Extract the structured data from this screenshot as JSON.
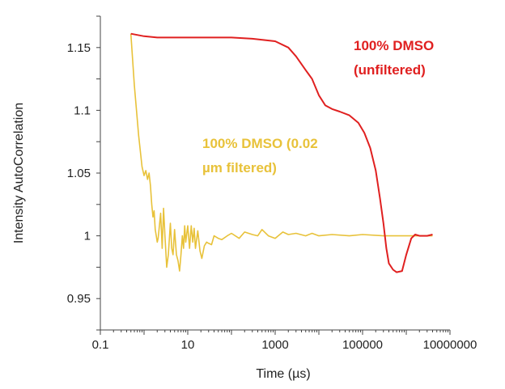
{
  "chart_data": {
    "type": "line",
    "title": "",
    "xlabel": "Time (µs)",
    "ylabel": "Intensity AutoCorrelation",
    "xscale": "log",
    "xlim": [
      0.1,
      10000000
    ],
    "ylim": [
      0.925,
      1.175
    ],
    "x_ticks": [
      0.1,
      10,
      1000,
      100000,
      10000000
    ],
    "x_tick_labels": [
      "0.1",
      "10",
      "1000",
      "100000",
      "10000000"
    ],
    "y_ticks": [
      0.95,
      1,
      1.05,
      1.1,
      1.15
    ],
    "y_tick_labels": [
      "0.95",
      "1",
      "1.05",
      "1.1",
      "1.15"
    ],
    "grid": false,
    "series": [
      {
        "name": "",
        "color": "#e8c23a",
        "points": [
          [
            0.5,
            1.161
          ],
          [
            0.6,
            1.12
          ],
          [
            0.75,
            1.08
          ],
          [
            0.9,
            1.055
          ],
          [
            1.0,
            1.048
          ],
          [
            1.1,
            1.052
          ],
          [
            1.2,
            1.045
          ],
          [
            1.3,
            1.05
          ],
          [
            1.4,
            1.04
          ],
          [
            1.5,
            1.025
          ],
          [
            1.6,
            1.015
          ],
          [
            1.7,
            1.02
          ],
          [
            1.8,
            1.005
          ],
          [
            1.9,
            1.0
          ],
          [
            2.0,
            0.995
          ],
          [
            2.1,
            0.998
          ],
          [
            2.2,
            1.005
          ],
          [
            2.4,
            1.018
          ],
          [
            2.6,
            0.99
          ],
          [
            2.8,
            1.022
          ],
          [
            3.0,
            1.0
          ],
          [
            3.3,
            0.975
          ],
          [
            3.6,
            0.985
          ],
          [
            4.0,
            1.01
          ],
          [
            4.3,
            0.99
          ],
          [
            4.6,
            0.985
          ],
          [
            5.0,
            1.005
          ],
          [
            5.5,
            0.985
          ],
          [
            6.0,
            0.98
          ],
          [
            6.5,
            0.972
          ],
          [
            7.0,
            0.985
          ],
          [
            7.5,
            1.0
          ],
          [
            8.0,
            0.99
          ],
          [
            8.5,
            1.008
          ],
          [
            9.0,
            0.995
          ],
          [
            10,
            1.008
          ],
          [
            11,
            0.99
          ],
          [
            12,
            1.008
          ],
          [
            13,
            0.995
          ],
          [
            14,
            1.006
          ],
          [
            15,
            0.99
          ],
          [
            17,
            1.004
          ],
          [
            19,
            0.988
          ],
          [
            21,
            0.982
          ],
          [
            24,
            0.992
          ],
          [
            27,
            0.995
          ],
          [
            30,
            0.994
          ],
          [
            35,
            0.993
          ],
          [
            40,
            1.0
          ],
          [
            50,
            0.998
          ],
          [
            60,
            0.997
          ],
          [
            80,
            1.0
          ],
          [
            100,
            1.002
          ],
          [
            150,
            0.998
          ],
          [
            200,
            1.003
          ],
          [
            300,
            1.001
          ],
          [
            400,
            1.0
          ],
          [
            500,
            1.005
          ],
          [
            700,
            1.0
          ],
          [
            1000,
            0.998
          ],
          [
            1500,
            1.003
          ],
          [
            2000,
            1.001
          ],
          [
            3000,
            1.002
          ],
          [
            5000,
            1.0
          ],
          [
            7000,
            1.002
          ],
          [
            10000,
            1.0
          ],
          [
            20000,
            1.001
          ],
          [
            50000,
            1.0
          ],
          [
            100000,
            1.001
          ],
          [
            300000,
            1.0
          ],
          [
            1000000,
            1.0
          ],
          [
            4000000,
            1.0
          ]
        ]
      },
      {
        "name": "",
        "color": "#e02020",
        "points": [
          [
            0.5,
            1.161
          ],
          [
            1,
            1.159
          ],
          [
            2,
            1.158
          ],
          [
            4,
            1.158
          ],
          [
            10,
            1.158
          ],
          [
            30,
            1.158
          ],
          [
            100,
            1.158
          ],
          [
            300,
            1.157
          ],
          [
            1000,
            1.155
          ],
          [
            2000,
            1.15
          ],
          [
            3000,
            1.143
          ],
          [
            5000,
            1.132
          ],
          [
            7000,
            1.125
          ],
          [
            10000,
            1.112
          ],
          [
            14000,
            1.104
          ],
          [
            20000,
            1.101
          ],
          [
            30000,
            1.099
          ],
          [
            50000,
            1.096
          ],
          [
            80000,
            1.09
          ],
          [
            110000,
            1.082
          ],
          [
            150000,
            1.07
          ],
          [
            200000,
            1.052
          ],
          [
            250000,
            1.03
          ],
          [
            300000,
            1.01
          ],
          [
            350000,
            0.99
          ],
          [
            400000,
            0.978
          ],
          [
            500000,
            0.973
          ],
          [
            600000,
            0.971
          ],
          [
            800000,
            0.972
          ],
          [
            1000000,
            0.985
          ],
          [
            1300000,
            0.998
          ],
          [
            1600000,
            1.001
          ],
          [
            2000000,
            1.0
          ],
          [
            3000000,
            1.0
          ],
          [
            4000000,
            1.001
          ]
        ]
      }
    ],
    "annotations": [
      {
        "lines": [
          "100% DMSO",
          "(unfiltered)"
        ],
        "color": "#e02020"
      },
      {
        "lines": [
          "100% DMSO   (0.02",
          "µm filtered)"
        ],
        "color": "#e8c23a"
      }
    ]
  }
}
